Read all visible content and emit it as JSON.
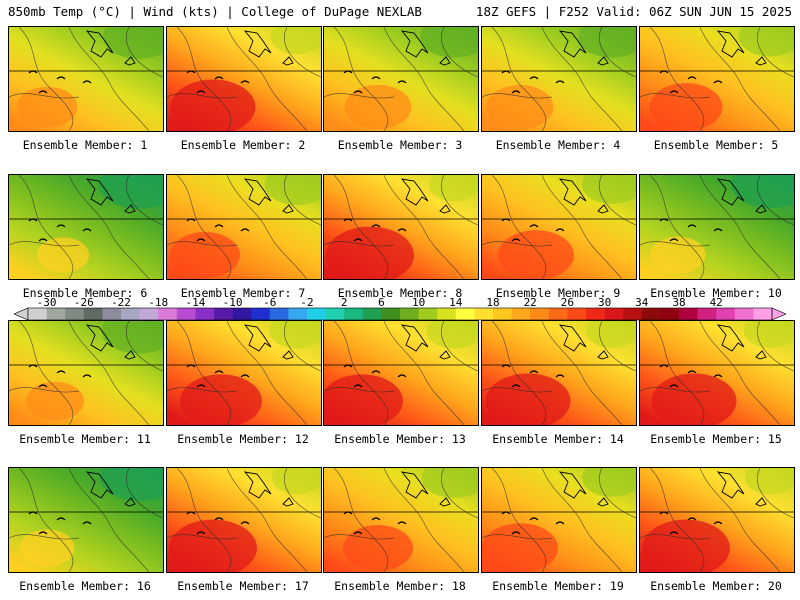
{
  "header": {
    "left": "850mb Temp (°C) | Wind (kts) | College of DuPage NEXLAB",
    "right": "18Z GEFS | F252 Valid: 06Z SUN JUN 15 2025"
  },
  "members": [
    {
      "label": "Ensemble Member: 1",
      "warmth": 0.35
    },
    {
      "label": "Ensemble Member: 2",
      "warmth": 0.75
    },
    {
      "label": "Ensemble Member: 3",
      "warmth": 0.45
    },
    {
      "label": "Ensemble Member: 4",
      "warmth": 0.45
    },
    {
      "label": "Ensemble Member: 5",
      "warmth": 0.55
    },
    {
      "label": "Ensemble Member: 6",
      "warmth": 0.2
    },
    {
      "label": "Ensemble Member: 7",
      "warmth": 0.5
    },
    {
      "label": "Ensemble Member: 8",
      "warmth": 0.8
    },
    {
      "label": "Ensemble Member: 9",
      "warmth": 0.6
    },
    {
      "label": "Ensemble Member: 10",
      "warmth": 0.25
    },
    {
      "label": "Ensemble Member: 11",
      "warmth": 0.3
    },
    {
      "label": "Ensemble Member: 12",
      "warmth": 0.7
    },
    {
      "label": "Ensemble Member: 13",
      "warmth": 0.7
    },
    {
      "label": "Ensemble Member: 14",
      "warmth": 0.75
    },
    {
      "label": "Ensemble Member: 15",
      "warmth": 0.75
    },
    {
      "label": "Ensemble Member: 16",
      "warmth": 0.25
    },
    {
      "label": "Ensemble Member: 17",
      "warmth": 0.8
    },
    {
      "label": "Ensemble Member: 18",
      "warmth": 0.5
    },
    {
      "label": "Ensemble Member: 19",
      "warmth": 0.6
    },
    {
      "label": "Ensemble Member: 20",
      "warmth": 0.8
    }
  ],
  "colorbar": {
    "labels": [
      "-30",
      "-26",
      "-22",
      "-18",
      "-14",
      "-10",
      "-6",
      "-2",
      "2",
      "6",
      "10",
      "14",
      "18",
      "22",
      "26",
      "30",
      "34",
      "38",
      "42"
    ],
    "colors": [
      "#d0d0d0",
      "#a0a8a0",
      "#7f8a82",
      "#5e6a62",
      "#8c8c9c",
      "#a7a7c3",
      "#c3a7d8",
      "#d77ad8",
      "#b84bd0",
      "#8a2ec8",
      "#5a1aa8",
      "#3018a0",
      "#2030d0",
      "#2a6ae0",
      "#36a8f0",
      "#20d0e8",
      "#20d0b0",
      "#18b880",
      "#20a050",
      "#409020",
      "#70b020",
      "#a0cc20",
      "#d8e020",
      "#ffff40",
      "#ffe030",
      "#ffc820",
      "#ffa81c",
      "#ff8c18",
      "#ff6a18",
      "#ff4a18",
      "#f02818",
      "#d81818",
      "#b81010",
      "#8c0a0a",
      "#900010",
      "#b00040",
      "#d02080",
      "#e040b0",
      "#f070d0",
      "#ffa0e8"
    ]
  }
}
